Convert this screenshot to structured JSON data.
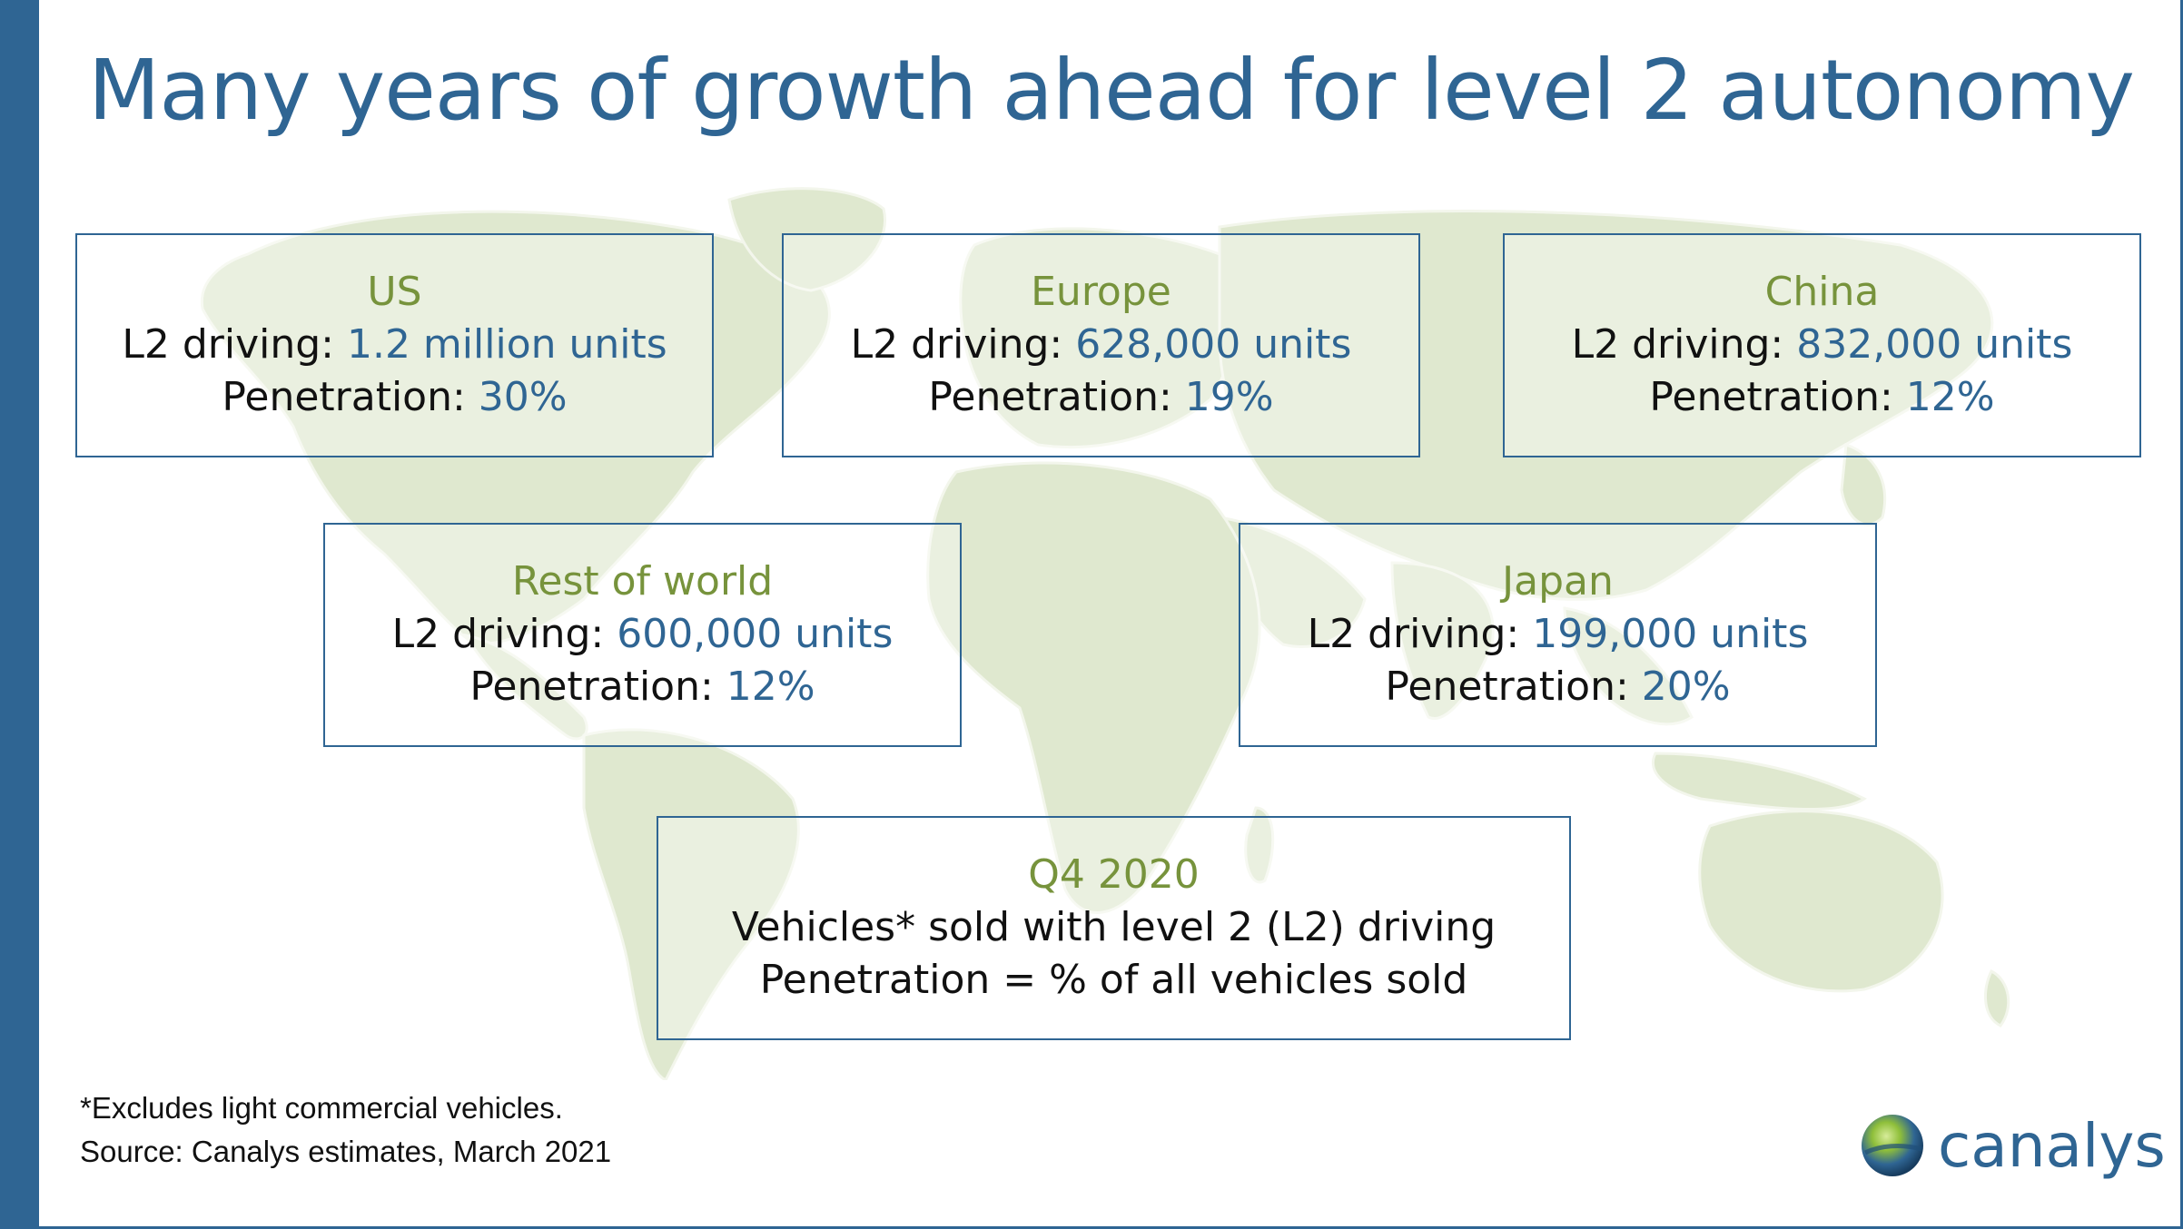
{
  "title": "Many years of growth ahead for level 2 autonomy",
  "regions": {
    "us": {
      "name": "US",
      "l2_label": "L2 driving: ",
      "l2_value": "1.2 million units",
      "pen_label": "Penetration: ",
      "pen_value": "30%"
    },
    "europe": {
      "name": "Europe",
      "l2_label": "L2 driving: ",
      "l2_value": "628,000 units",
      "pen_label": "Penetration: ",
      "pen_value": "19%"
    },
    "china": {
      "name": "China",
      "l2_label": "L2 driving: ",
      "l2_value": "832,000 units",
      "pen_label": "Penetration: ",
      "pen_value": "12%"
    },
    "rest_of_world": {
      "name": "Rest of world",
      "l2_label": "L2 driving: ",
      "l2_value": "600,000 units",
      "pen_label": "Penetration: ",
      "pen_value": "12%"
    },
    "japan": {
      "name": "Japan",
      "l2_label": "L2 driving: ",
      "l2_value": "199,000 units",
      "pen_label": "Penetration: ",
      "pen_value": "20%"
    }
  },
  "legend": {
    "period": "Q4 2020",
    "line1": "Vehicles* sold with level 2 (L2) driving",
    "line2": "Penetration = % of all vehicles sold"
  },
  "footnote": {
    "note": "*Excludes light commercial vehicles.",
    "source": "Source:  Canalys estimates, March 2021"
  },
  "logo": {
    "word": "canalys"
  },
  "colors": {
    "brand_blue": "#2f6593",
    "region_green": "#77933c",
    "map_fill": "#dfe8cf"
  }
}
